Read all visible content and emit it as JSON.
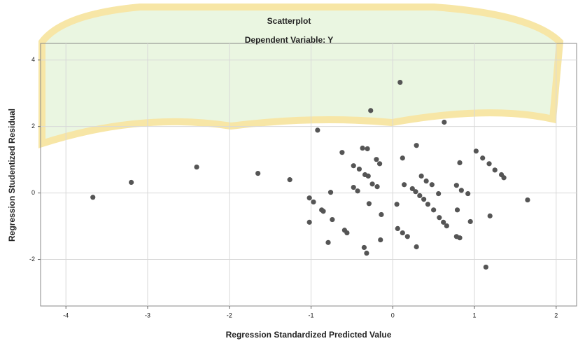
{
  "chart_data": {
    "type": "scatter",
    "title": "Scatterplot",
    "subtitle": "Dependent Variable: Y",
    "x_label": "Regression Standardized Predicted Value",
    "y_label": "Regression Studentized Residual",
    "color": "#555555",
    "grid": true,
    "xlim": [
      -4.31,
      2.25
    ],
    "ylim": [
      -3.4,
      4.5
    ],
    "xticks": [
      -4,
      -3,
      -2,
      -1,
      0,
      1,
      2
    ],
    "yticks": [
      -2,
      0,
      2,
      4
    ],
    "x": [
      -3.67,
      -3.2,
      -2.4,
      -1.65,
      -1.26,
      -0.92,
      -0.62,
      -0.37,
      -0.31,
      -0.27,
      0.09,
      0.63,
      -0.48,
      -0.41,
      -0.34,
      -0.3,
      -0.2,
      -0.16,
      -0.25,
      -0.19,
      -0.48,
      -0.43,
      -0.76,
      -1.02,
      -0.97,
      -0.87,
      -0.85,
      -0.74,
      -0.59,
      -0.56,
      -1.02,
      -0.79,
      -0.29,
      -0.14,
      -0.15,
      -0.35,
      -0.32,
      0.05,
      0.06,
      0.12,
      0.14,
      0.24,
      0.28,
      0.33,
      0.38,
      0.43,
      0.29,
      0.35,
      0.41,
      0.48,
      0.5,
      0.57,
      0.62,
      0.66,
      0.56,
      0.12,
      0.18,
      0.29,
      0.82,
      0.78,
      0.84,
      0.92,
      0.79,
      0.78,
      0.82,
      0.95,
      1.02,
      1.1,
      1.18,
      1.25,
      1.33,
      1.36,
      1.19,
      1.14,
      1.65
    ],
    "y": [
      -0.13,
      0.32,
      0.78,
      0.59,
      0.4,
      1.89,
      1.22,
      1.35,
      1.33,
      2.48,
      3.33,
      2.13,
      0.82,
      0.72,
      0.55,
      0.51,
      1.01,
      0.88,
      0.27,
      0.19,
      0.17,
      0.06,
      0.02,
      -0.15,
      -0.27,
      -0.51,
      -0.55,
      -0.8,
      -1.12,
      -1.2,
      -0.88,
      -1.49,
      -0.32,
      -0.65,
      -1.41,
      -1.64,
      -1.81,
      -0.34,
      -1.07,
      1.05,
      0.25,
      0.13,
      0.04,
      -0.08,
      -0.19,
      -0.34,
      1.43,
      0.51,
      0.36,
      0.25,
      -0.51,
      -0.74,
      -0.88,
      -0.99,
      -0.02,
      -1.2,
      -1.31,
      -1.62,
      0.91,
      0.23,
      0.08,
      -0.02,
      -0.51,
      -1.31,
      -1.35,
      -0.86,
      1.26,
      1.05,
      0.88,
      0.69,
      0.55,
      0.46,
      -0.69,
      -2.23,
      -0.21
    ]
  }
}
